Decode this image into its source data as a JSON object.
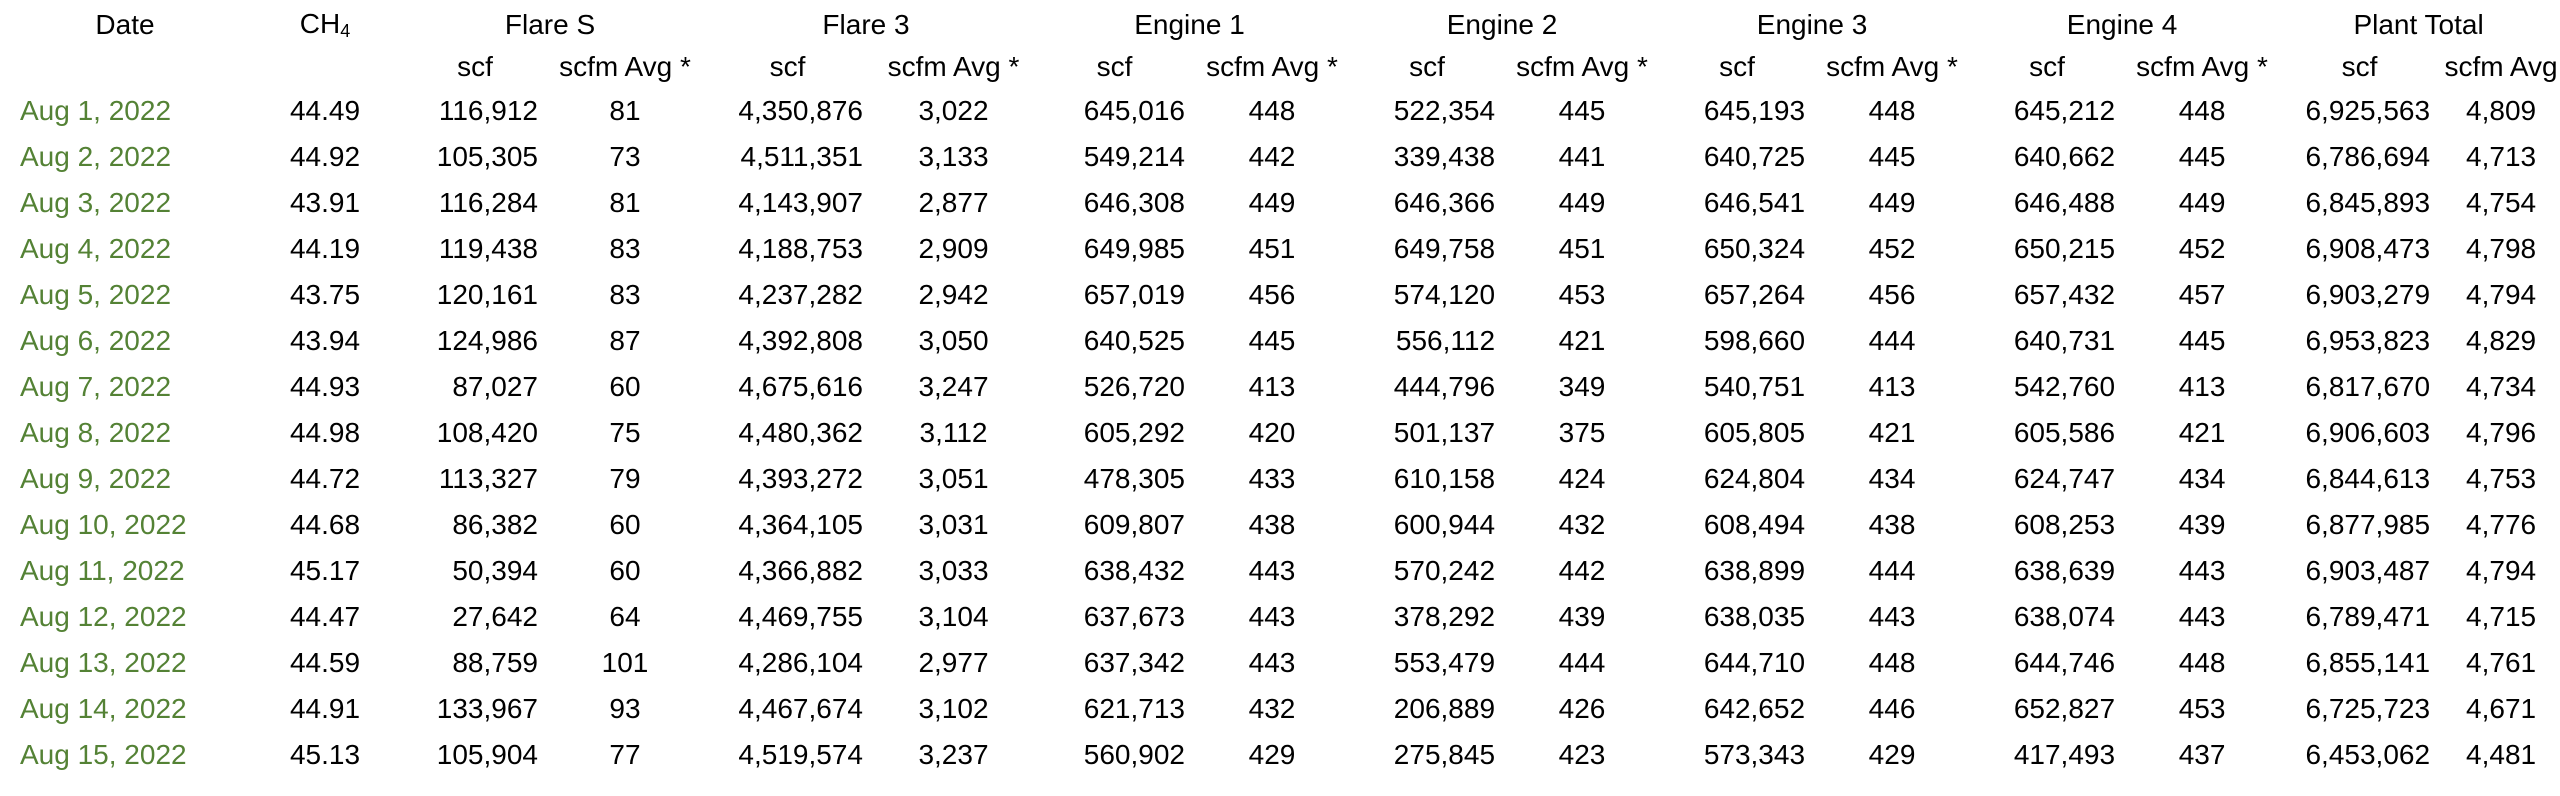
{
  "header": {
    "date": "Date",
    "ch4_base": "CH",
    "ch4_sub": "4",
    "groups": [
      "Flare S",
      "Flare 3",
      "Engine 1",
      "Engine 2",
      "Engine 3",
      "Engine 4",
      "Plant Total"
    ],
    "unit_scf": "scf",
    "unit_avg": "scfm Avg *",
    "unit_avg_total": "scfm Avg"
  },
  "rows": [
    {
      "date": "Aug 1, 2022",
      "ch4": "44.49",
      "vals": [
        "116,912",
        "81",
        "4,350,876",
        "3,022",
        "645,016",
        "448",
        "522,354",
        "445",
        "645,193",
        "448",
        "645,212",
        "448",
        "6,925,563",
        "4,809"
      ]
    },
    {
      "date": "Aug 2, 2022",
      "ch4": "44.92",
      "vals": [
        "105,305",
        "73",
        "4,511,351",
        "3,133",
        "549,214",
        "442",
        "339,438",
        "441",
        "640,725",
        "445",
        "640,662",
        "445",
        "6,786,694",
        "4,713"
      ]
    },
    {
      "date": "Aug 3, 2022",
      "ch4": "43.91",
      "vals": [
        "116,284",
        "81",
        "4,143,907",
        "2,877",
        "646,308",
        "449",
        "646,366",
        "449",
        "646,541",
        "449",
        "646,488",
        "449",
        "6,845,893",
        "4,754"
      ]
    },
    {
      "date": "Aug 4, 2022",
      "ch4": "44.19",
      "vals": [
        "119,438",
        "83",
        "4,188,753",
        "2,909",
        "649,985",
        "451",
        "649,758",
        "451",
        "650,324",
        "452",
        "650,215",
        "452",
        "6,908,473",
        "4,798"
      ]
    },
    {
      "date": "Aug 5, 2022",
      "ch4": "43.75",
      "vals": [
        "120,161",
        "83",
        "4,237,282",
        "2,942",
        "657,019",
        "456",
        "574,120",
        "453",
        "657,264",
        "456",
        "657,432",
        "457",
        "6,903,279",
        "4,794"
      ]
    },
    {
      "date": "Aug 6, 2022",
      "ch4": "43.94",
      "vals": [
        "124,986",
        "87",
        "4,392,808",
        "3,050",
        "640,525",
        "445",
        "556,112",
        "421",
        "598,660",
        "444",
        "640,731",
        "445",
        "6,953,823",
        "4,829"
      ]
    },
    {
      "date": "Aug 7, 2022",
      "ch4": "44.93",
      "vals": [
        "87,027",
        "60",
        "4,675,616",
        "3,247",
        "526,720",
        "413",
        "444,796",
        "349",
        "540,751",
        "413",
        "542,760",
        "413",
        "6,817,670",
        "4,734"
      ]
    },
    {
      "date": "Aug 8, 2022",
      "ch4": "44.98",
      "vals": [
        "108,420",
        "75",
        "4,480,362",
        "3,112",
        "605,292",
        "420",
        "501,137",
        "375",
        "605,805",
        "421",
        "605,586",
        "421",
        "6,906,603",
        "4,796"
      ]
    },
    {
      "date": "Aug 9, 2022",
      "ch4": "44.72",
      "vals": [
        "113,327",
        "79",
        "4,393,272",
        "3,051",
        "478,305",
        "433",
        "610,158",
        "424",
        "624,804",
        "434",
        "624,747",
        "434",
        "6,844,613",
        "4,753"
      ]
    },
    {
      "date": "Aug 10, 2022",
      "ch4": "44.68",
      "vals": [
        "86,382",
        "60",
        "4,364,105",
        "3,031",
        "609,807",
        "438",
        "600,944",
        "432",
        "608,494",
        "438",
        "608,253",
        "439",
        "6,877,985",
        "4,776"
      ]
    },
    {
      "date": "Aug 11, 2022",
      "ch4": "45.17",
      "vals": [
        "50,394",
        "60",
        "4,366,882",
        "3,033",
        "638,432",
        "443",
        "570,242",
        "442",
        "638,899",
        "444",
        "638,639",
        "443",
        "6,903,487",
        "4,794"
      ]
    },
    {
      "date": "Aug 12, 2022",
      "ch4": "44.47",
      "vals": [
        "27,642",
        "64",
        "4,469,755",
        "3,104",
        "637,673",
        "443",
        "378,292",
        "439",
        "638,035",
        "443",
        "638,074",
        "443",
        "6,789,471",
        "4,715"
      ]
    },
    {
      "date": "Aug 13, 2022",
      "ch4": "44.59",
      "vals": [
        "88,759",
        "101",
        "4,286,104",
        "2,977",
        "637,342",
        "443",
        "553,479",
        "444",
        "644,710",
        "448",
        "644,746",
        "448",
        "6,855,141",
        "4,761"
      ]
    },
    {
      "date": "Aug 14, 2022",
      "ch4": "44.91",
      "vals": [
        "133,967",
        "93",
        "4,467,674",
        "3,102",
        "621,713",
        "432",
        "206,889",
        "426",
        "642,652",
        "446",
        "652,827",
        "453",
        "6,725,723",
        "4,671"
      ]
    },
    {
      "date": "Aug 15, 2022",
      "ch4": "45.13",
      "vals": [
        "105,904",
        "77",
        "4,519,574",
        "3,237",
        "560,902",
        "429",
        "275,845",
        "423",
        "573,343",
        "429",
        "417,493",
        "437",
        "6,453,062",
        "4,481"
      ]
    }
  ],
  "colors": {
    "date_text": "#548235",
    "text": "#000000",
    "background": "#ffffff"
  }
}
